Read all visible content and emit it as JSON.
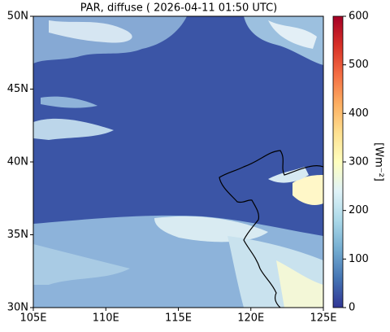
{
  "title": "PAR, diffuse ( 2026-04-11 01:50 UTC)",
  "map": {
    "xlim": [
      105,
      125
    ],
    "ylim": [
      30,
      50
    ],
    "xticks": [
      {
        "value": 105,
        "label": "105E"
      },
      {
        "value": 110,
        "label": "110E"
      },
      {
        "value": 115,
        "label": "115E"
      },
      {
        "value": 120,
        "label": "120E"
      },
      {
        "value": 125,
        "label": "125E"
      }
    ],
    "yticks": [
      {
        "value": 30,
        "label": "30N"
      },
      {
        "value": 35,
        "label": "35N"
      },
      {
        "value": 40,
        "label": "40N"
      },
      {
        "value": 45,
        "label": "45N"
      },
      {
        "value": 50,
        "label": "50N"
      }
    ]
  },
  "colorbar": {
    "label": "[Wm⁻²]",
    "lim": [
      0,
      600
    ],
    "ticks": [
      0,
      100,
      200,
      300,
      400,
      500,
      600
    ]
  }
}
